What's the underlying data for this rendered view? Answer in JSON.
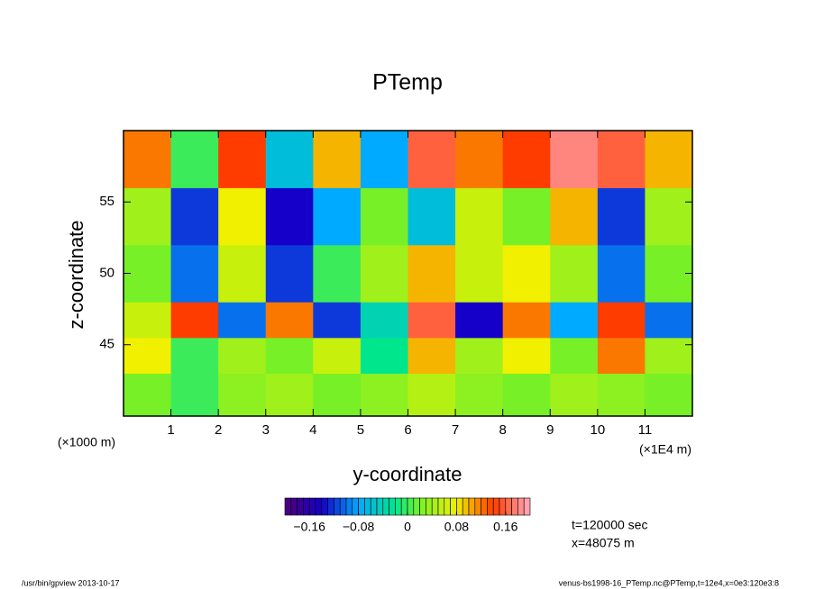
{
  "chart_data": {
    "type": "heatmap",
    "title": "PTemp",
    "x_label": "y-coordinate",
    "y_label": "z-coordinate",
    "x_unit": "(×1E4 m)",
    "y_unit": "(×1000 m)",
    "xbins": [
      0,
      1,
      2,
      3,
      4,
      5,
      6,
      7,
      8,
      9,
      10,
      11,
      12
    ],
    "ybins": [
      40,
      43,
      45.5,
      48,
      52,
      56,
      60
    ],
    "z": [
      [
        0.02,
        0.0,
        0.03,
        0.04,
        0.02,
        0.03,
        0.05,
        0.03,
        0.02,
        0.04,
        0.03,
        0.02
      ],
      [
        0.08,
        0.0,
        0.04,
        0.02,
        0.06,
        -0.02,
        0.1,
        0.04,
        0.08,
        0.02,
        0.12,
        0.04
      ],
      [
        0.06,
        0.14,
        -0.1,
        0.12,
        -0.12,
        -0.04,
        0.16,
        -0.14,
        0.12,
        -0.08,
        0.14,
        -0.1
      ],
      [
        0.02,
        -0.1,
        0.06,
        -0.12,
        0.0,
        0.04,
        0.1,
        0.06,
        0.08,
        0.04,
        -0.1,
        0.02
      ],
      [
        0.04,
        -0.12,
        0.08,
        -0.14,
        -0.08,
        0.02,
        -0.06,
        0.06,
        0.02,
        0.1,
        -0.12,
        0.04
      ],
      [
        0.12,
        0.0,
        0.14,
        -0.06,
        0.1,
        -0.08,
        0.16,
        0.12,
        0.14,
        0.18,
        0.16,
        0.1
      ]
    ],
    "xlim": [
      0,
      12
    ],
    "ylim": [
      40,
      60
    ],
    "xticks": [
      1,
      2,
      3,
      4,
      5,
      6,
      7,
      8,
      9,
      10,
      11
    ],
    "yticks": [
      45,
      50,
      55
    ],
    "clim": [
      -0.2,
      0.2
    ],
    "n_levels": 40,
    "cticks": [
      {
        "value": -0.16,
        "label": "−0.16"
      },
      {
        "value": -0.08,
        "label": "−0.08"
      },
      0,
      0.08,
      0.16
    ],
    "annotations": [
      "t=120000 sec",
      "x=48075 m"
    ],
    "footer_left": "/usr/bin/gpview  2013-10-17",
    "footer_right": "venus-bs1998-16_PTemp.nc@PTemp,t=12e4,x=0e3:120e3:8"
  }
}
